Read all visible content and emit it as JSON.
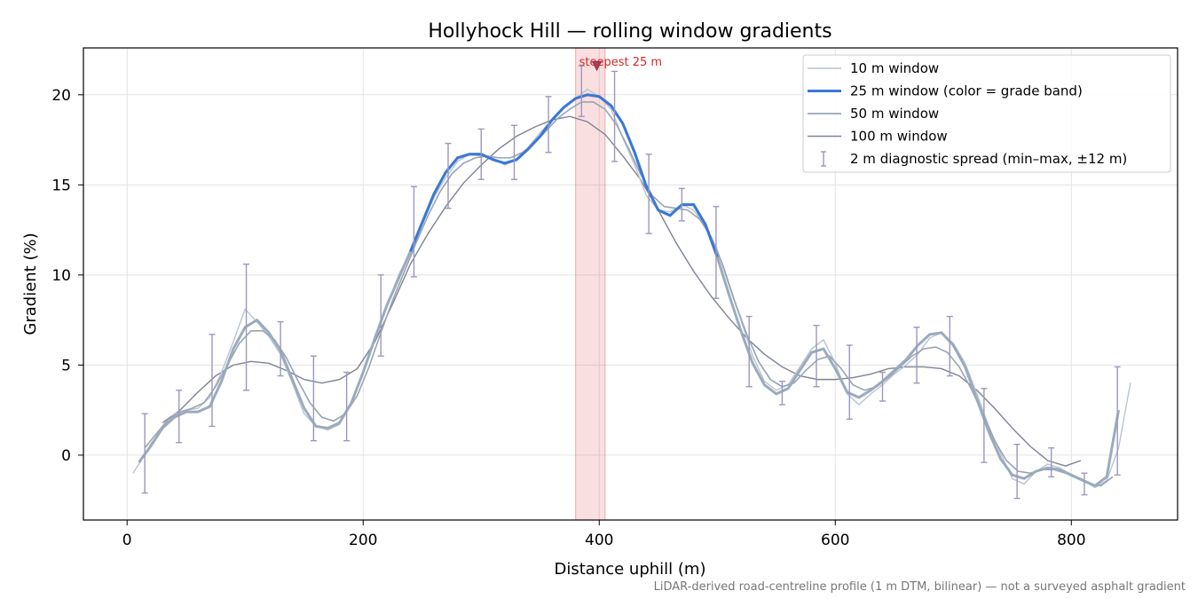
{
  "chart_data": {
    "type": "line",
    "title": "Hollyhock Hill — rolling window gradients",
    "xlabel": "Distance uphill (m)",
    "ylabel": "Gradient (%)",
    "xlim": [
      -37,
      890
    ],
    "ylim": [
      -3.6,
      22.6
    ],
    "x_ticks": [
      0,
      200,
      400,
      600,
      800
    ],
    "y_ticks": [
      0,
      5,
      10,
      15,
      20
    ],
    "grid": true,
    "legend_position": "top-right",
    "footnote": "LiDAR-derived road-centreline profile (1 m DTM, bilinear) — not a surveyed asphalt gradient",
    "highlight": {
      "label": "steepest 25 m",
      "x_start": 380,
      "x_end": 405,
      "marker": {
        "x": 398,
        "y": 21.6
      },
      "color": "#d62728"
    },
    "colors": {
      "w10": "#b9c4d0",
      "w25_fg": "#3a78d6",
      "w25_bg": "#9aabbd",
      "w50": "#98a4b4",
      "w100": "#7c8395",
      "errbar": "#9c97bd",
      "highlight": "#d62728",
      "footnote": "#777777"
    },
    "legend": [
      {
        "key": "w10",
        "label": "10 m window"
      },
      {
        "key": "w25",
        "label": "25 m window (color = grade band)"
      },
      {
        "key": "w50",
        "label": "50 m window"
      },
      {
        "key": "w100",
        "label": "100 m window"
      },
      {
        "key": "err",
        "label": "2 m diagnostic spread (min–max, ±12 m)"
      }
    ],
    "series": [
      {
        "name": "10 m window",
        "x": [
          5,
          12,
          20,
          30,
          40,
          50,
          60,
          70,
          80,
          90,
          100,
          110,
          120,
          130,
          140,
          150,
          160,
          170,
          180,
          190,
          200,
          210,
          220,
          230,
          240,
          250,
          260,
          270,
          280,
          290,
          300,
          310,
          320,
          330,
          340,
          350,
          360,
          370,
          380,
          390,
          400,
          410,
          420,
          430,
          440,
          450,
          460,
          470,
          480,
          490,
          500,
          510,
          520,
          530,
          540,
          550,
          560,
          570,
          580,
          590,
          600,
          610,
          620,
          630,
          640,
          650,
          660,
          670,
          680,
          690,
          700,
          710,
          720,
          730,
          740,
          750,
          760,
          770,
          780,
          790,
          800,
          810,
          820,
          830,
          840,
          850
        ],
        "y": [
          -1.0,
          -0.3,
          0.6,
          1.5,
          2.3,
          2.5,
          2.6,
          3.2,
          4.6,
          6.3,
          8.1,
          7.4,
          6.6,
          5.6,
          4.0,
          2.3,
          1.6,
          1.4,
          1.7,
          2.9,
          4.6,
          6.5,
          8.2,
          10.0,
          11.3,
          12.8,
          14.3,
          15.4,
          16.3,
          16.7,
          16.6,
          16.5,
          16.1,
          16.4,
          17.1,
          17.9,
          18.6,
          19.3,
          19.8,
          20.3,
          19.9,
          19.2,
          17.6,
          16.1,
          14.4,
          13.6,
          13.5,
          13.9,
          13.6,
          12.7,
          11.4,
          9.4,
          7.5,
          5.5,
          4.1,
          3.6,
          3.9,
          4.9,
          5.9,
          6.4,
          5.1,
          3.4,
          2.8,
          3.4,
          3.9,
          4.5,
          5.0,
          5.6,
          6.5,
          6.8,
          6.2,
          5.1,
          3.4,
          1.6,
          0.1,
          -1.3,
          -1.6,
          -0.9,
          -0.5,
          -0.7,
          -1.1,
          -1.4,
          -1.8,
          -1.4,
          0.4,
          4.0
        ]
      },
      {
        "name": "25 m window",
        "x": [
          10,
          20,
          30,
          40,
          50,
          60,
          70,
          80,
          90,
          100,
          110,
          120,
          130,
          140,
          150,
          160,
          170,
          180,
          190,
          200,
          210,
          220,
          230,
          240,
          250,
          260,
          270,
          280,
          290,
          300,
          310,
          320,
          330,
          340,
          350,
          360,
          370,
          380,
          390,
          400,
          410,
          420,
          430,
          440,
          450,
          460,
          470,
          480,
          490,
          500,
          510,
          520,
          530,
          540,
          550,
          560,
          570,
          580,
          590,
          600,
          610,
          620,
          630,
          640,
          650,
          660,
          670,
          680,
          690,
          700,
          710,
          720,
          730,
          740,
          750,
          760,
          770,
          780,
          790,
          800,
          810,
          820,
          830,
          840
        ],
        "y": [
          -0.4,
          0.5,
          1.5,
          2.1,
          2.4,
          2.4,
          2.7,
          4.1,
          5.9,
          7.1,
          7.5,
          6.8,
          5.8,
          4.2,
          2.6,
          1.6,
          1.5,
          1.8,
          2.9,
          4.6,
          6.5,
          8.3,
          9.8,
          11.3,
          12.9,
          14.5,
          15.7,
          16.5,
          16.7,
          16.7,
          16.4,
          16.2,
          16.4,
          17.0,
          17.7,
          18.6,
          19.3,
          19.8,
          20.0,
          19.9,
          19.4,
          18.4,
          16.8,
          14.9,
          13.6,
          13.3,
          13.9,
          13.9,
          12.8,
          11.0,
          8.9,
          6.9,
          5.1,
          3.9,
          3.4,
          3.7,
          4.7,
          5.7,
          5.9,
          4.8,
          3.5,
          3.2,
          3.6,
          4.1,
          4.7,
          5.3,
          6.1,
          6.7,
          6.8,
          6.1,
          4.9,
          3.1,
          1.3,
          -0.2,
          -1.1,
          -1.3,
          -0.9,
          -0.7,
          -0.8,
          -1.1,
          -1.4,
          -1.7,
          -1.2,
          2.5
        ]
      },
      {
        "name": "50 m window",
        "x": [
          15,
          25,
          35,
          45,
          55,
          65,
          75,
          85,
          95,
          105,
          115,
          125,
          135,
          145,
          155,
          165,
          175,
          185,
          195,
          205,
          215,
          225,
          235,
          245,
          255,
          265,
          275,
          285,
          295,
          305,
          315,
          325,
          335,
          345,
          355,
          365,
          375,
          385,
          395,
          405,
          415,
          425,
          435,
          445,
          455,
          465,
          475,
          485,
          495,
          505,
          515,
          525,
          535,
          545,
          555,
          565,
          575,
          585,
          595,
          605,
          615,
          625,
          635,
          645,
          655,
          665,
          675,
          685,
          695,
          705,
          715,
          725,
          735,
          745,
          755,
          765,
          775,
          785,
          795,
          805,
          815,
          825,
          835
        ],
        "y": [
          0.4,
          1.2,
          2.0,
          2.4,
          2.6,
          2.9,
          3.8,
          5.0,
          6.2,
          6.9,
          6.9,
          6.4,
          5.4,
          4.1,
          2.9,
          2.1,
          1.9,
          2.3,
          3.3,
          4.9,
          6.8,
          8.6,
          10.2,
          11.8,
          13.3,
          14.6,
          15.6,
          16.2,
          16.5,
          16.6,
          16.5,
          16.5,
          16.8,
          17.3,
          18.0,
          18.7,
          19.2,
          19.6,
          19.6,
          19.2,
          18.3,
          17.0,
          15.6,
          14.4,
          13.8,
          13.7,
          13.6,
          13.1,
          12.1,
          10.5,
          8.5,
          6.7,
          5.2,
          4.2,
          3.8,
          4.0,
          4.7,
          5.3,
          5.5,
          4.8,
          3.9,
          3.6,
          3.8,
          4.3,
          4.9,
          5.5,
          5.9,
          6.0,
          5.7,
          4.9,
          3.7,
          2.3,
          0.8,
          -0.3,
          -0.9,
          -1.0,
          -0.8,
          -0.8,
          -1.0,
          -1.3,
          -1.6,
          -1.7,
          -1.2
        ]
      },
      {
        "name": "100 m window",
        "x": [
          30,
          45,
          60,
          75,
          90,
          105,
          120,
          135,
          150,
          165,
          180,
          195,
          210,
          225,
          240,
          255,
          270,
          285,
          300,
          315,
          330,
          345,
          360,
          375,
          390,
          405,
          420,
          435,
          450,
          465,
          480,
          495,
          510,
          525,
          540,
          555,
          570,
          585,
          600,
          615,
          630,
          645,
          660,
          675,
          690,
          705,
          720,
          735,
          750,
          765,
          780,
          795,
          808
        ],
        "y": [
          1.8,
          2.5,
          3.5,
          4.4,
          5.0,
          5.2,
          5.1,
          4.7,
          4.2,
          4.0,
          4.2,
          4.8,
          6.3,
          8.4,
          10.6,
          12.3,
          13.8,
          15.1,
          16.1,
          17.0,
          17.7,
          18.2,
          18.6,
          18.8,
          18.5,
          17.8,
          16.6,
          15.3,
          13.6,
          11.8,
          10.2,
          8.8,
          7.6,
          6.5,
          5.6,
          4.9,
          4.4,
          4.2,
          4.2,
          4.3,
          4.5,
          4.8,
          4.9,
          4.9,
          4.8,
          4.4,
          3.6,
          2.6,
          1.5,
          0.5,
          -0.3,
          -0.6,
          -0.3
        ]
      }
    ],
    "error_bars": [
      {
        "x": 15,
        "low": -2.1,
        "high": 2.3
      },
      {
        "x": 44,
        "low": 0.7,
        "high": 3.6
      },
      {
        "x": 72,
        "low": 1.6,
        "high": 6.7
      },
      {
        "x": 101,
        "low": 3.6,
        "high": 10.6
      },
      {
        "x": 130,
        "low": 4.4,
        "high": 7.4
      },
      {
        "x": 158,
        "low": 0.8,
        "high": 5.5
      },
      {
        "x": 186,
        "low": 0.8,
        "high": 4.6
      },
      {
        "x": 215,
        "low": 5.5,
        "high": 10.0
      },
      {
        "x": 243,
        "low": 9.9,
        "high": 14.9
      },
      {
        "x": 272,
        "low": 13.7,
        "high": 17.3
      },
      {
        "x": 300,
        "low": 15.3,
        "high": 18.1
      },
      {
        "x": 328,
        "low": 15.3,
        "high": 18.3
      },
      {
        "x": 357,
        "low": 16.8,
        "high": 19.9
      },
      {
        "x": 385,
        "low": 18.8,
        "high": 21.6
      },
      {
        "x": 413,
        "low": 16.3,
        "high": 21.3
      },
      {
        "x": 442,
        "low": 12.3,
        "high": 16.7
      },
      {
        "x": 470,
        "low": 13.0,
        "high": 14.8
      },
      {
        "x": 499,
        "low": 8.7,
        "high": 13.8
      },
      {
        "x": 527,
        "low": 3.8,
        "high": 7.7
      },
      {
        "x": 555,
        "low": 2.8,
        "high": 4.1
      },
      {
        "x": 584,
        "low": 3.8,
        "high": 7.2
      },
      {
        "x": 612,
        "low": 2.0,
        "high": 6.1
      },
      {
        "x": 640,
        "low": 3.0,
        "high": 4.6
      },
      {
        "x": 669,
        "low": 4.0,
        "high": 7.1
      },
      {
        "x": 697,
        "low": 4.4,
        "high": 7.7
      },
      {
        "x": 726,
        "low": -0.4,
        "high": 3.7
      },
      {
        "x": 754,
        "low": -2.4,
        "high": 0.6
      },
      {
        "x": 783,
        "low": -1.2,
        "high": 0.4
      },
      {
        "x": 811,
        "low": -2.2,
        "high": -1.0
      },
      {
        "x": 839,
        "low": -1.1,
        "high": 4.9
      }
    ]
  }
}
